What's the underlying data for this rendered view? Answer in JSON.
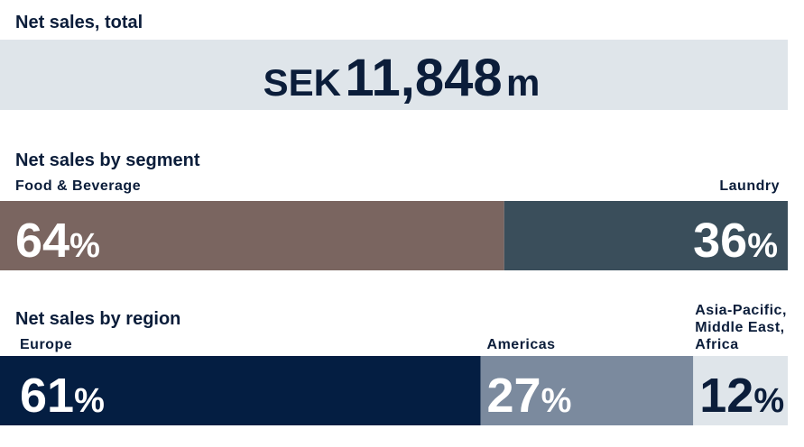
{
  "total": {
    "title": "Net sales, total",
    "prefix": "SEK",
    "amount": "11,848",
    "unit": "m"
  },
  "segment": {
    "title": "Net sales by segment",
    "items": [
      {
        "name": "Food & Beverage",
        "value": 64,
        "value_label": "64%",
        "color": "#7a6560",
        "text_color": "#ffffff"
      },
      {
        "name": "Laundry",
        "value": 36,
        "value_label": "36%",
        "color": "#3a4e5b",
        "text_color": "#ffffff"
      }
    ]
  },
  "region": {
    "title": "Net sales by region",
    "items": [
      {
        "name": "Europe",
        "value": 61,
        "value_label": "61%",
        "color": "#041e42",
        "text_color": "#ffffff"
      },
      {
        "name": "Americas",
        "value": 27,
        "value_label": "27%",
        "color": "#7b8a9e",
        "text_color": "#ffffff"
      },
      {
        "name": [
          "Asia-Pacific,",
          "Middle East,",
          "Africa"
        ],
        "value": 12,
        "value_label": "12%",
        "color": "#dfe5ea",
        "text_color": "#0b1d3a"
      }
    ]
  }
}
